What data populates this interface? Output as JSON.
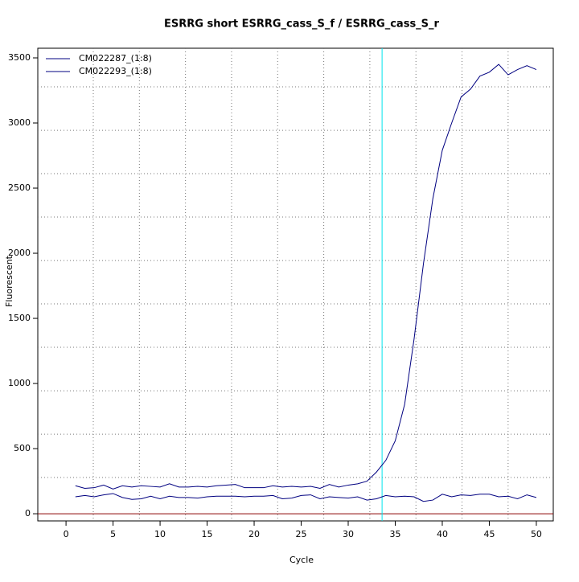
{
  "chart_data": {
    "type": "line",
    "title": "ESRRG short ESRRG_cass_S_f / ESRRG_cass_S_r",
    "x_label": "Cycle",
    "y_label": "Fluorescent",
    "x": [
      1,
      2,
      3,
      4,
      5,
      6,
      7,
      8,
      9,
      10,
      11,
      12,
      13,
      14,
      15,
      16,
      17,
      18,
      19,
      20,
      21,
      22,
      23,
      24,
      25,
      26,
      27,
      28,
      29,
      30,
      31,
      32,
      33,
      34,
      35,
      36,
      37,
      38,
      39,
      40,
      41,
      42,
      43,
      44,
      45,
      46,
      47,
      48,
      49,
      50
    ],
    "series": [
      {
        "name": "CM022287_(1:8)",
        "color": "#000080",
        "values": [
          215,
          195,
          200,
          220,
          190,
          215,
          205,
          215,
          210,
          205,
          230,
          205,
          205,
          210,
          205,
          215,
          220,
          225,
          200,
          200,
          200,
          215,
          205,
          210,
          205,
          210,
          195,
          225,
          205,
          220,
          230,
          250,
          320,
          410,
          560,
          840,
          1340,
          1920,
          2420,
          2790,
          3000,
          3200,
          3260,
          3360,
          3390,
          3450,
          3370,
          3410,
          3440,
          3410
        ]
      },
      {
        "name": "CM022293_(1:8)",
        "color": "#000080",
        "values": [
          130,
          140,
          130,
          145,
          155,
          125,
          110,
          115,
          135,
          115,
          135,
          125,
          125,
          120,
          130,
          135,
          135,
          135,
          130,
          135,
          135,
          140,
          115,
          120,
          140,
          145,
          115,
          130,
          125,
          120,
          130,
          105,
          115,
          140,
          130,
          135,
          130,
          95,
          105,
          150,
          130,
          145,
          140,
          150,
          150,
          130,
          135,
          115,
          145,
          125
        ]
      }
    ],
    "xlim": [
      -3,
      51.8
    ],
    "ylim": [
      -55,
      3574
    ],
    "xticks": [
      0,
      5,
      10,
      15,
      20,
      25,
      30,
      35,
      40,
      45,
      50
    ],
    "yticks": [
      0,
      500,
      1000,
      1500,
      2000,
      2500,
      3000,
      3500
    ],
    "xgrid": [
      2.9,
      7.8,
      12.7,
      17.6,
      22.5,
      27.4,
      32.3,
      37.2,
      42.1,
      47.0
    ],
    "ygrid": [
      278,
      611,
      944,
      1278,
      1611,
      1944,
      2278,
      2611,
      2944,
      3278
    ],
    "threshold": 33.6,
    "threshold_color": "#00e5ee",
    "baseline": 0,
    "baseline_color": "#8b0000",
    "legend": "top-left"
  }
}
